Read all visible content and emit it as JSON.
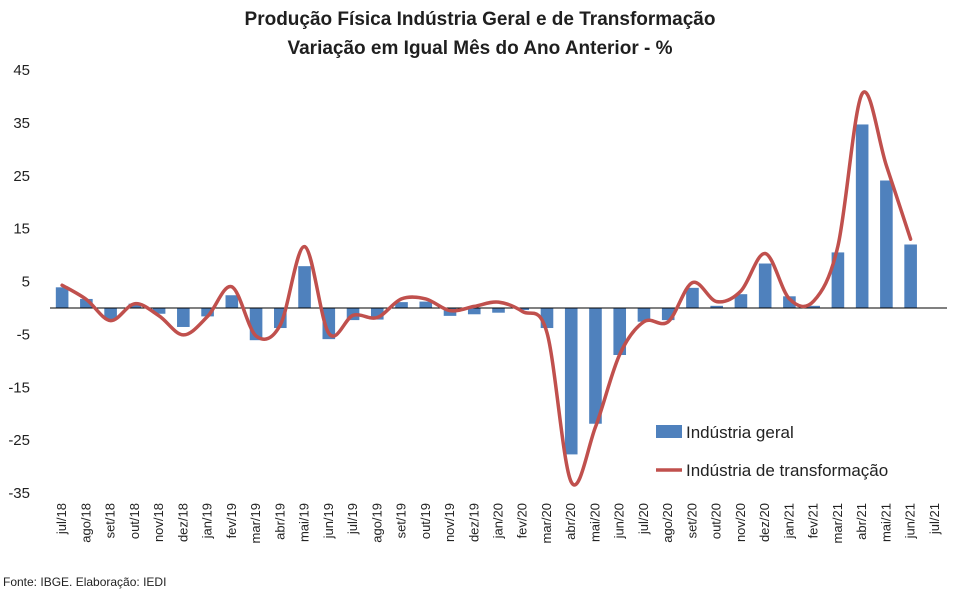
{
  "chart_data": {
    "type": "bar",
    "title": "Produção Física Indústria Geral e de Transformação",
    "subtitle": "Variação em Igual Mês do Ano Anterior - %",
    "categories": [
      "jul/18",
      "ago/18",
      "set/18",
      "out/18",
      "nov/18",
      "dez/18",
      "jan/19",
      "fev/19",
      "mar/19",
      "abr/19",
      "mai/19",
      "jun/19",
      "jul/19",
      "ago/19",
      "set/19",
      "out/19",
      "nov/19",
      "dez/19",
      "jan/20",
      "fev/20",
      "mar/20",
      "abr/20",
      "mai/20",
      "jun/20",
      "jul/20",
      "ago/20",
      "set/20",
      "out/20",
      "nov/20",
      "dez/20",
      "jan/21",
      "fev/21",
      "mar/21",
      "abr/21",
      "mai/21",
      "jun/21",
      "jul/21"
    ],
    "yticks": [
      45,
      35,
      25,
      15,
      5,
      -5,
      -15,
      -25,
      -35
    ],
    "ylim": [
      -35,
      45
    ],
    "legend_position": "bottom-right",
    "series": [
      {
        "name": "Indústria geral",
        "kind": "bar",
        "color": "#4f81bd",
        "values": [
          3.9,
          1.7,
          -2.2,
          0.8,
          -1.1,
          -3.6,
          -1.6,
          2.4,
          -6.1,
          -3.8,
          7.9,
          -5.9,
          -2.3,
          -2.2,
          1.1,
          1.2,
          -1.5,
          -1.2,
          -0.9,
          -0.4,
          -3.8,
          -27.7,
          -21.9,
          -8.9,
          -2.6,
          -2.3,
          3.8,
          0.4,
          2.6,
          8.4,
          2.2,
          0.4,
          10.5,
          34.7,
          24.1,
          12.0,
          null
        ]
      },
      {
        "name": "Indústria de transformação",
        "kind": "line",
        "color": "#c0504d",
        "values": [
          4.3,
          1.6,
          -2.4,
          0.8,
          -1.5,
          -5.1,
          -1.6,
          4.0,
          -5.3,
          -3.2,
          11.6,
          -4.8,
          -1.4,
          -1.8,
          1.7,
          1.7,
          -0.5,
          0.3,
          1.1,
          -0.7,
          -4.7,
          -32.9,
          -22.5,
          -8.8,
          -2.6,
          -2.6,
          4.8,
          1.2,
          3.2,
          10.3,
          1.7,
          1.3,
          11.7,
          40.5,
          26.9,
          13.0,
          null
        ]
      }
    ]
  },
  "source": "Fonte: IBGE. Elaboração: IEDI"
}
